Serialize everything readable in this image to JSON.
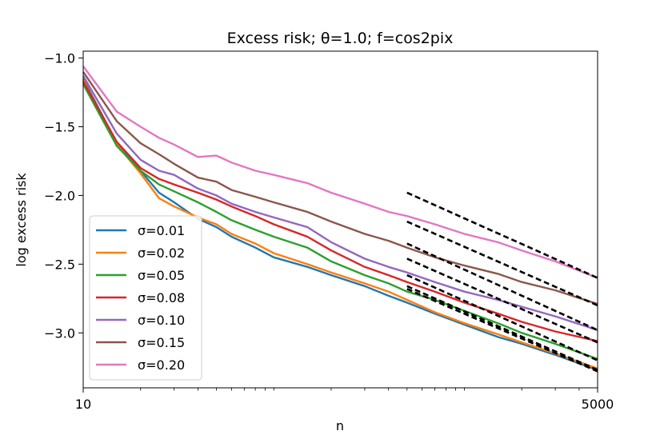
{
  "chart_data": {
    "type": "line",
    "title": "Excess risk; θ=1.0;  f=cos2pix",
    "xlabel": "n",
    "ylabel": "log excess risk",
    "xscale": "log",
    "xlim": [
      10,
      5000
    ],
    "ylim": [
      -3.4,
      -0.95
    ],
    "xticks": [
      10,
      5000
    ],
    "xtick_labels": [
      "10",
      "5000"
    ],
    "yticks": [
      -1.0,
      -1.5,
      -2.0,
      -2.5,
      -3.0
    ],
    "ytick_labels": [
      "−1.0",
      "−1.5",
      "−2.0",
      "−2.5",
      "−3.0"
    ],
    "legend_position": "lower-left",
    "series": [
      {
        "name": "σ=0.01",
        "color": "#1f77b4",
        "x": [
          10,
          15,
          20,
          25,
          30,
          40,
          50,
          60,
          80,
          100,
          150,
          200,
          300,
          400,
          500,
          700,
          1000,
          1500,
          2000,
          3000,
          5000
        ],
        "y": [
          -1.15,
          -1.62,
          -1.82,
          -1.98,
          -2.05,
          -2.17,
          -2.23,
          -2.3,
          -2.38,
          -2.45,
          -2.52,
          -2.58,
          -2.66,
          -2.73,
          -2.78,
          -2.86,
          -2.94,
          -3.03,
          -3.08,
          -3.16,
          -3.27
        ]
      },
      {
        "name": "σ=0.02",
        "color": "#ff7f0e",
        "x": [
          10,
          15,
          20,
          25,
          30,
          40,
          50,
          60,
          80,
          100,
          150,
          200,
          300,
          400,
          500,
          700,
          1000,
          1500,
          2000,
          3000,
          5000
        ],
        "y": [
          -1.16,
          -1.63,
          -1.84,
          -2.02,
          -2.08,
          -2.16,
          -2.21,
          -2.28,
          -2.35,
          -2.42,
          -2.5,
          -2.56,
          -2.64,
          -2.7,
          -2.76,
          -2.85,
          -2.93,
          -3.01,
          -3.07,
          -3.15,
          -3.26
        ]
      },
      {
        "name": "σ=0.05",
        "color": "#2ca02c",
        "x": [
          10,
          15,
          20,
          25,
          30,
          40,
          50,
          60,
          80,
          100,
          150,
          200,
          300,
          400,
          500,
          700,
          1000,
          1500,
          2000,
          3000,
          5000
        ],
        "y": [
          -1.19,
          -1.64,
          -1.82,
          -1.92,
          -1.97,
          -2.05,
          -2.12,
          -2.18,
          -2.25,
          -2.3,
          -2.38,
          -2.48,
          -2.58,
          -2.64,
          -2.7,
          -2.76,
          -2.84,
          -2.93,
          -3.0,
          -3.08,
          -3.19
        ]
      },
      {
        "name": "σ=0.08",
        "color": "#d62728",
        "x": [
          10,
          15,
          20,
          25,
          30,
          40,
          50,
          60,
          80,
          100,
          150,
          200,
          300,
          400,
          500,
          700,
          1000,
          1500,
          2000,
          3000,
          5000
        ],
        "y": [
          -1.17,
          -1.61,
          -1.8,
          -1.88,
          -1.92,
          -1.98,
          -2.03,
          -2.08,
          -2.15,
          -2.21,
          -2.3,
          -2.4,
          -2.52,
          -2.58,
          -2.63,
          -2.7,
          -2.78,
          -2.86,
          -2.92,
          -2.99,
          -3.06
        ]
      },
      {
        "name": "σ=0.10",
        "color": "#9467bd",
        "x": [
          10,
          15,
          20,
          25,
          30,
          40,
          50,
          60,
          80,
          100,
          150,
          200,
          300,
          400,
          500,
          700,
          1000,
          1500,
          2000,
          3000,
          5000
        ],
        "y": [
          -1.13,
          -1.55,
          -1.74,
          -1.82,
          -1.85,
          -1.95,
          -2.0,
          -2.06,
          -2.12,
          -2.16,
          -2.23,
          -2.34,
          -2.46,
          -2.52,
          -2.56,
          -2.63,
          -2.7,
          -2.76,
          -2.81,
          -2.88,
          -2.98
        ]
      },
      {
        "name": "σ=0.15",
        "color": "#8c564b",
        "x": [
          10,
          15,
          20,
          25,
          30,
          40,
          50,
          60,
          80,
          100,
          150,
          200,
          300,
          400,
          500,
          700,
          1000,
          1500,
          2000,
          3000,
          5000
        ],
        "y": [
          -1.1,
          -1.46,
          -1.62,
          -1.7,
          -1.77,
          -1.87,
          -1.9,
          -1.96,
          -2.01,
          -2.05,
          -2.12,
          -2.19,
          -2.28,
          -2.33,
          -2.38,
          -2.45,
          -2.51,
          -2.57,
          -2.63,
          -2.69,
          -2.79
        ]
      },
      {
        "name": "σ=0.20",
        "color": "#e377c2",
        "x": [
          10,
          15,
          20,
          25,
          30,
          40,
          50,
          60,
          80,
          100,
          150,
          200,
          300,
          400,
          500,
          700,
          1000,
          1500,
          2000,
          3000,
          5000
        ],
        "y": [
          -1.06,
          -1.39,
          -1.5,
          -1.58,
          -1.63,
          -1.72,
          -1.71,
          -1.76,
          -1.82,
          -1.85,
          -1.91,
          -1.98,
          -2.06,
          -2.12,
          -2.15,
          -2.21,
          -2.28,
          -2.34,
          -2.4,
          -2.48,
          -2.6
        ]
      }
    ],
    "reference_lines": [
      {
        "x": [
          500,
          5000
        ],
        "y": [
          -1.98,
          -2.6
        ]
      },
      {
        "x": [
          500,
          5000
        ],
        "y": [
          -2.19,
          -2.8
        ]
      },
      {
        "x": [
          500,
          5000
        ],
        "y": [
          -2.35,
          -2.98
        ]
      },
      {
        "x": [
          500,
          5000
        ],
        "y": [
          -2.46,
          -3.07
        ]
      },
      {
        "x": [
          500,
          5000
        ],
        "y": [
          -2.58,
          -3.2
        ]
      },
      {
        "x": [
          500,
          5000
        ],
        "y": [
          -2.66,
          -3.27
        ]
      },
      {
        "x": [
          500,
          5000
        ],
        "y": [
          -2.68,
          -3.28
        ]
      }
    ]
  }
}
